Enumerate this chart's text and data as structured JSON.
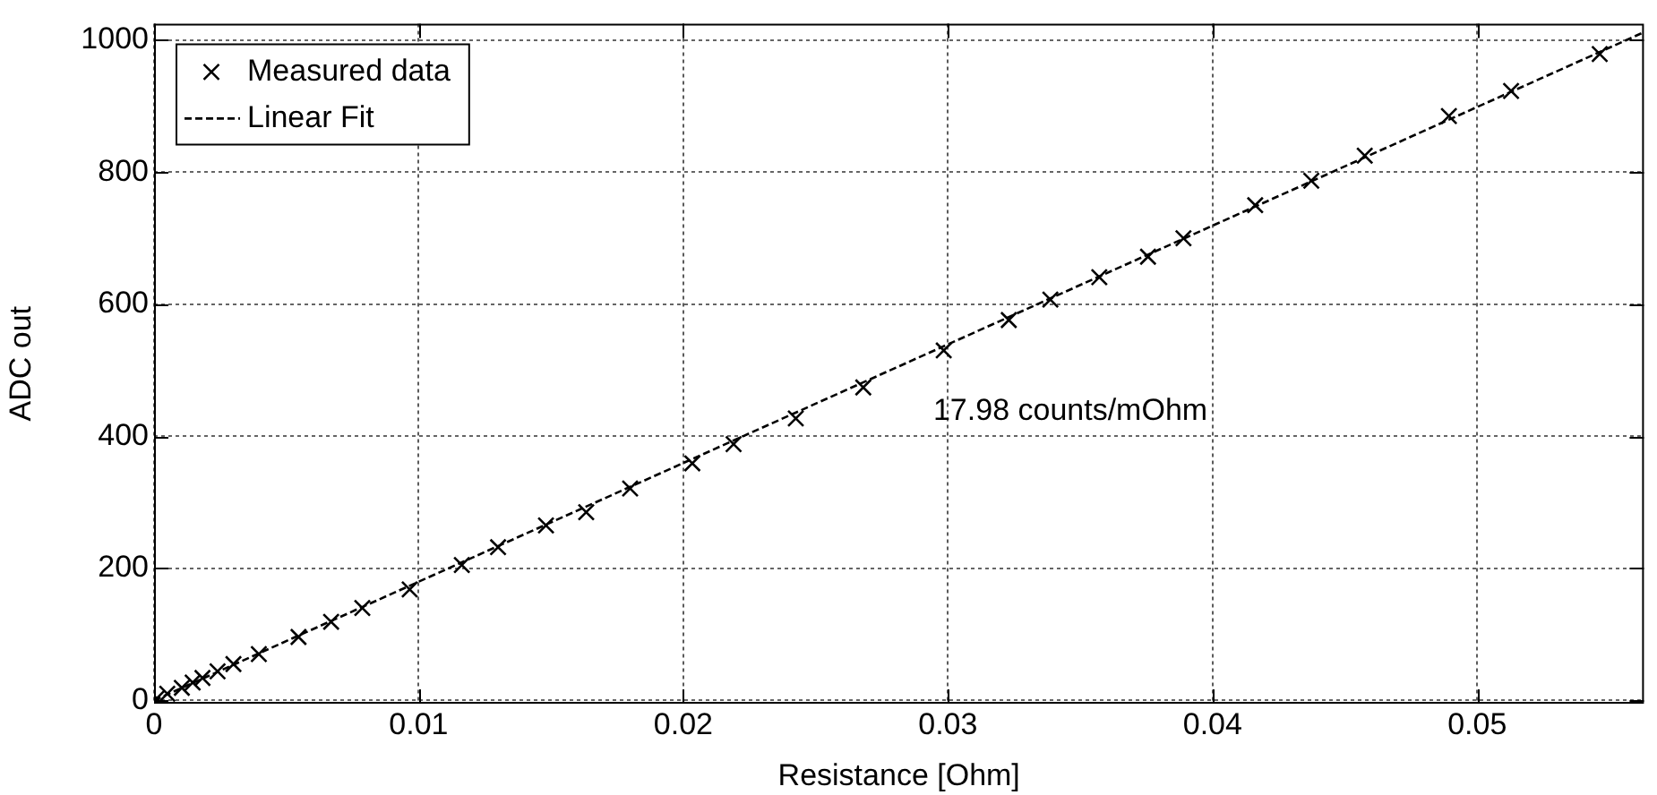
{
  "chart_data": {
    "type": "scatter",
    "xlabel": "Resistance [Ohm]",
    "ylabel": "ADC out",
    "xlim": [
      0,
      0.0563
    ],
    "ylim": [
      -5,
      1025
    ],
    "xticks": [
      0,
      0.01,
      0.02,
      0.03,
      0.04,
      0.05
    ],
    "yticks": [
      0,
      200,
      400,
      600,
      800,
      1000
    ],
    "grid": true,
    "legend": "top left",
    "annotations": [
      "17.98 counts/mOhm"
    ],
    "series": [
      {
        "name": "Measured data",
        "color": "#000000",
        "marker": "cross",
        "x": [
          0.0001,
          0.0005,
          0.00105,
          0.00146,
          0.00183,
          0.0024,
          0.003,
          0.00396,
          0.00546,
          0.00669,
          0.00787,
          0.00966,
          0.01163,
          0.013,
          0.01481,
          0.01633,
          0.01799,
          0.02034,
          0.0219,
          0.02425,
          0.0268,
          0.02984,
          0.0323,
          0.03387,
          0.03572,
          0.03756,
          0.0389,
          0.04161,
          0.04373,
          0.04575,
          0.04893,
          0.05128,
          0.05463
        ],
        "values": [
          3,
          10,
          19,
          27,
          34,
          44,
          55,
          70,
          96,
          119,
          140,
          168,
          205,
          232,
          265,
          285,
          321,
          359,
          388,
          427,
          474,
          530,
          576,
          607,
          641,
          672,
          700,
          750,
          787,
          825,
          885,
          923,
          979
        ]
      },
      {
        "name": "Linear Fit",
        "type": "line",
        "color": "#000000",
        "marker": "none",
        "line_style": "dashed",
        "x": [
          0,
          0.0563
        ],
        "values": [
          0,
          1012
        ]
      }
    ]
  }
}
